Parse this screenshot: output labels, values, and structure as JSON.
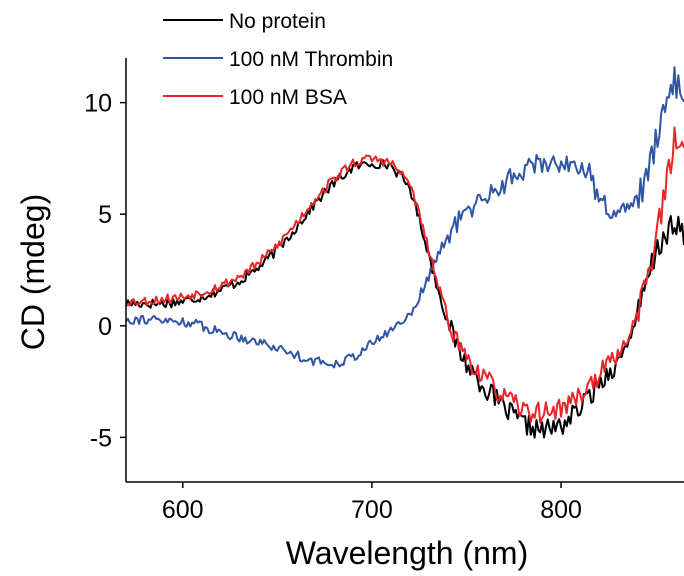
{
  "chart_data": {
    "type": "line",
    "title": "",
    "xlabel": "Wavelength (nm)",
    "ylabel": "CD (mdeg)",
    "xlim": [
      570,
      865
    ],
    "ylim": [
      -7,
      12
    ],
    "xticks": [
      600,
      700,
      800
    ],
    "xtick_labels": [
      "600",
      "700",
      "800"
    ],
    "yticks": [
      -5,
      0,
      5,
      10
    ],
    "ytick_labels": [
      "-5",
      "0",
      "5",
      "10"
    ],
    "grid": false,
    "legend_position": "top-left",
    "series": [
      {
        "name": "No protein",
        "color": "#000000",
        "points": [
          [
            570,
            1.0
          ],
          [
            580,
            1.0
          ],
          [
            590,
            1.0
          ],
          [
            600,
            1.1
          ],
          [
            610,
            1.3
          ],
          [
            620,
            1.6
          ],
          [
            630,
            2.0
          ],
          [
            640,
            2.6
          ],
          [
            650,
            3.4
          ],
          [
            660,
            4.4
          ],
          [
            670,
            5.5
          ],
          [
            680,
            6.4
          ],
          [
            690,
            7.1
          ],
          [
            700,
            7.3
          ],
          [
            710,
            7.2
          ],
          [
            720,
            6.2
          ],
          [
            725,
            4.8
          ],
          [
            730,
            3.2
          ],
          [
            735,
            1.6
          ],
          [
            740,
            0.2
          ],
          [
            745,
            -0.9
          ],
          [
            750,
            -1.7
          ],
          [
            760,
            -2.8
          ],
          [
            770,
            -3.7
          ],
          [
            780,
            -4.4
          ],
          [
            790,
            -4.7
          ],
          [
            800,
            -4.5
          ],
          [
            810,
            -3.7
          ],
          [
            820,
            -2.6
          ],
          [
            830,
            -1.6
          ],
          [
            835,
            -0.8
          ],
          [
            840,
            0.3
          ],
          [
            845,
            1.8
          ],
          [
            850,
            3.2
          ],
          [
            855,
            4.2
          ],
          [
            860,
            4.3
          ],
          [
            865,
            4.2
          ]
        ]
      },
      {
        "name": "100 nM Thrombin",
        "color": "#2f55a4",
        "points": [
          [
            570,
            0.3
          ],
          [
            580,
            0.3
          ],
          [
            590,
            0.2
          ],
          [
            600,
            0.2
          ],
          [
            610,
            0.0
          ],
          [
            620,
            -0.3
          ],
          [
            630,
            -0.5
          ],
          [
            640,
            -0.7
          ],
          [
            650,
            -1.0
          ],
          [
            660,
            -1.3
          ],
          [
            670,
            -1.6
          ],
          [
            680,
            -1.7
          ],
          [
            690,
            -1.4
          ],
          [
            700,
            -0.8
          ],
          [
            710,
            -0.2
          ],
          [
            720,
            0.5
          ],
          [
            725,
            1.3
          ],
          [
            730,
            2.2
          ],
          [
            735,
            3.2
          ],
          [
            740,
            4.0
          ],
          [
            745,
            4.6
          ],
          [
            750,
            5.1
          ],
          [
            760,
            5.8
          ],
          [
            770,
            6.4
          ],
          [
            780,
            7.0
          ],
          [
            790,
            7.3
          ],
          [
            800,
            7.3
          ],
          [
            810,
            7.2
          ],
          [
            815,
            6.8
          ],
          [
            820,
            5.6
          ],
          [
            825,
            5.3
          ],
          [
            830,
            5.2
          ],
          [
            835,
            5.3
          ],
          [
            840,
            5.7
          ],
          [
            845,
            6.5
          ],
          [
            850,
            8.2
          ],
          [
            855,
            10.2
          ],
          [
            860,
            11.0
          ],
          [
            865,
            10.2
          ]
        ]
      },
      {
        "name": "100 nM BSA",
        "color": "#e8262a",
        "points": [
          [
            570,
            1.1
          ],
          [
            580,
            1.1
          ],
          [
            590,
            1.2
          ],
          [
            600,
            1.3
          ],
          [
            610,
            1.5
          ],
          [
            620,
            1.8
          ],
          [
            630,
            2.2
          ],
          [
            640,
            2.8
          ],
          [
            650,
            3.6
          ],
          [
            660,
            4.6
          ],
          [
            670,
            5.7
          ],
          [
            680,
            6.6
          ],
          [
            690,
            7.3
          ],
          [
            700,
            7.5
          ],
          [
            710,
            7.3
          ],
          [
            720,
            6.4
          ],
          [
            725,
            5.0
          ],
          [
            730,
            3.4
          ],
          [
            735,
            1.8
          ],
          [
            740,
            0.4
          ],
          [
            745,
            -0.7
          ],
          [
            750,
            -1.4
          ],
          [
            760,
            -2.4
          ],
          [
            770,
            -3.2
          ],
          [
            780,
            -3.8
          ],
          [
            790,
            -3.9
          ],
          [
            800,
            -3.7
          ],
          [
            810,
            -3.1
          ],
          [
            820,
            -2.2
          ],
          [
            830,
            -1.3
          ],
          [
            835,
            -0.6
          ],
          [
            840,
            0.5
          ],
          [
            845,
            2.1
          ],
          [
            850,
            3.8
          ],
          [
            855,
            6.0
          ],
          [
            860,
            8.3
          ],
          [
            865,
            7.8
          ]
        ]
      }
    ]
  }
}
